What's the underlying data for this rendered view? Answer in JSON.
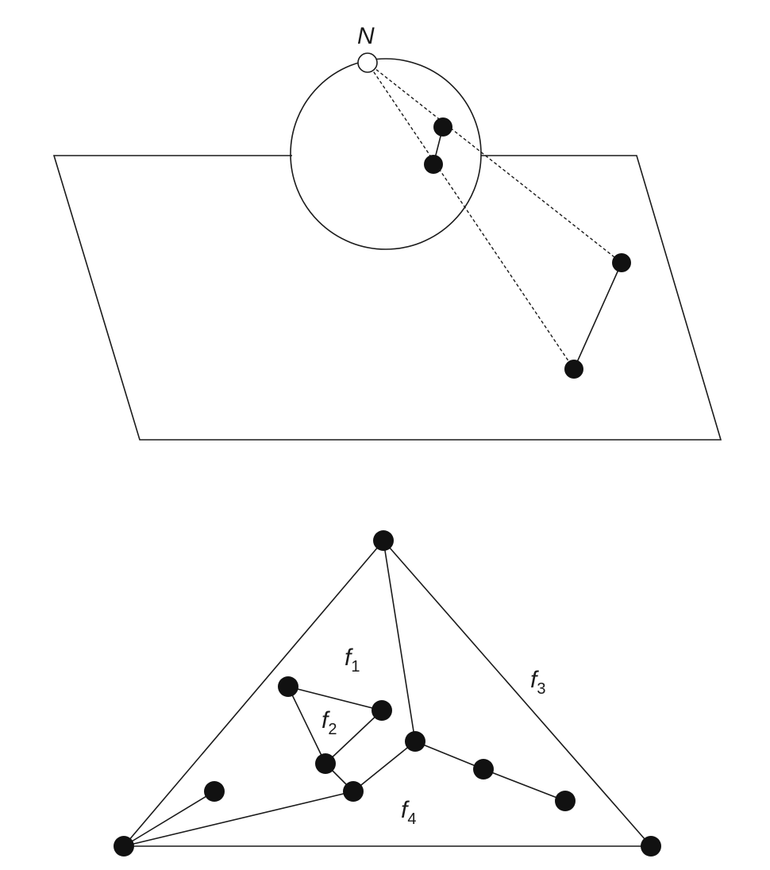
{
  "projection": {
    "north_label": "N"
  },
  "graph": {
    "faces": [
      {
        "letter": "f",
        "index": "1"
      },
      {
        "letter": "f",
        "index": "2"
      },
      {
        "letter": "f",
        "index": "3"
      },
      {
        "letter": "f",
        "index": "4"
      }
    ]
  }
}
